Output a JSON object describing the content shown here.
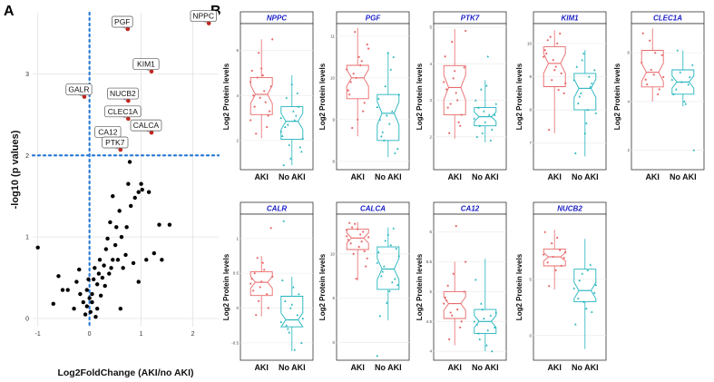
{
  "panels": {
    "a": "A",
    "b": "B"
  },
  "colors": {
    "aki": "#e8696a",
    "noaki": "#21b3bd",
    "volcano_point": "#000000",
    "highlight_point": "#c0261f",
    "threshold": "#2b7bd6",
    "title": "#1a1fc4"
  },
  "chart_data": [
    {
      "type": "scatter",
      "panel": "A",
      "xlabel": "Log2FoldChange (AKI/no AKI)",
      "ylabel": "-log10 (p values)",
      "xlim": [
        -1.1,
        2.5
      ],
      "ylim": [
        -0.1,
        3.75
      ],
      "xticks": [
        -1,
        0,
        1,
        2
      ],
      "yticks": [
        0,
        1,
        2,
        3
      ],
      "grid": true,
      "thresholds": {
        "x": 0,
        "y": 2
      },
      "labeled_points": [
        {
          "label": "NPPC",
          "x": 2.31,
          "y": 3.62
        },
        {
          "label": "PGF",
          "x": 0.74,
          "y": 3.55
        },
        {
          "label": "KIM1",
          "x": 1.2,
          "y": 3.03
        },
        {
          "label": "NUCB2",
          "x": 0.75,
          "y": 2.67
        },
        {
          "label": "GALR",
          "x": -0.1,
          "y": 2.72
        },
        {
          "label": "CLEC1A",
          "x": 0.75,
          "y": 2.45
        },
        {
          "label": "CALCA",
          "x": 1.2,
          "y": 2.28
        },
        {
          "label": "CA12",
          "x": 0.46,
          "y": 2.2
        },
        {
          "label": "PTK7",
          "x": 0.6,
          "y": 2.07
        }
      ],
      "points": [
        [
          -1.0,
          0.87
        ],
        [
          -0.7,
          0.18
        ],
        [
          -0.6,
          0.52
        ],
        [
          -0.52,
          0.35
        ],
        [
          -0.42,
          0.35
        ],
        [
          -0.3,
          0.12
        ],
        [
          -0.25,
          0.45
        ],
        [
          -0.2,
          0.6
        ],
        [
          -0.18,
          0.3
        ],
        [
          -0.12,
          0.2
        ],
        [
          -0.08,
          0.05
        ],
        [
          -0.05,
          0.35
        ],
        [
          -0.02,
          0.48
        ],
        [
          0.0,
          0.25
        ],
        [
          0.02,
          0.08
        ],
        [
          0.05,
          0.3
        ],
        [
          0.08,
          0.48
        ],
        [
          0.1,
          0.62
        ],
        [
          0.12,
          0.02
        ],
        [
          0.15,
          0.42
        ],
        [
          0.18,
          0.55
        ],
        [
          0.2,
          0.72
        ],
        [
          0.22,
          0.28
        ],
        [
          0.25,
          0.5
        ],
        [
          0.28,
          0.65
        ],
        [
          0.3,
          0.4
        ],
        [
          0.32,
          0.85
        ],
        [
          0.35,
          0.98
        ],
        [
          0.38,
          0.55
        ],
        [
          0.4,
          1.18
        ],
        [
          0.42,
          0.62
        ],
        [
          0.45,
          0.72
        ],
        [
          0.5,
          0.9
        ],
        [
          0.52,
          1.12
        ],
        [
          0.55,
          0.72
        ],
        [
          0.58,
          1.32
        ],
        [
          0.62,
          1.0
        ],
        [
          0.65,
          0.62
        ],
        [
          0.7,
          0.78
        ],
        [
          0.72,
          1.12
        ],
        [
          0.75,
          1.65
        ],
        [
          0.78,
          1.92
        ],
        [
          0.8,
          1.38
        ],
        [
          0.85,
          0.68
        ],
        [
          0.88,
          1.48
        ],
        [
          0.95,
          1.55
        ],
        [
          1.0,
          1.65
        ],
        [
          1.02,
          1.58
        ],
        [
          1.1,
          0.72
        ],
        [
          1.15,
          1.55
        ],
        [
          1.25,
          0.8
        ],
        [
          1.35,
          1.15
        ],
        [
          1.4,
          0.72
        ],
        [
          1.55,
          1.15
        ],
        [
          0.6,
          0.12
        ],
        [
          0.15,
          0.12
        ],
        [
          -0.05,
          0.15
        ],
        [
          0.05,
          0.2
        ],
        [
          0.45,
          1.5
        ],
        [
          0.95,
          0.45
        ]
      ]
    },
    {
      "type": "box",
      "panel": "B",
      "title": "NPPC",
      "ylabel": "Log2 Protein levels",
      "categories": [
        "AKI",
        "No AKI"
      ],
      "ylim": [
        0.7,
        7.2
      ],
      "yticks": [
        2,
        4,
        6
      ],
      "boxes": [
        {
          "q1": 3.15,
          "median": 4.05,
          "q3": 4.8,
          "whisker_low": 2.1,
          "whisker_high": 6.5
        },
        {
          "q1": 2.05,
          "median": 2.85,
          "q3": 3.5,
          "whisker_low": 0.9,
          "whisker_high": 4.9
        }
      ],
      "points": [
        [
          4.6,
          3.5,
          5.9,
          4.9,
          2.6,
          4.4,
          5.1,
          2.3,
          3.9,
          4.2,
          3.1,
          6.5,
          4.0,
          4.8,
          5.2,
          3.7,
          3.3,
          2.9
        ],
        [
          3.0,
          2.6,
          1.8,
          3.3,
          4.1,
          1.5,
          2.2,
          3.9,
          1.2,
          2.9,
          3.5,
          2.1,
          0.9,
          2.7,
          4.5,
          3.1,
          1.7,
          2.4
        ]
      ]
    },
    {
      "type": "box",
      "panel": "B",
      "title": "PGF",
      "ylabel": "Log2 Protein levels",
      "categories": [
        "AKI",
        "No AKI"
      ],
      "ylim": [
        7.8,
        11.3
      ],
      "yticks": [
        8,
        9,
        10,
        11
      ],
      "boxes": [
        {
          "q1": 9.5,
          "median": 10.0,
          "q3": 10.3,
          "whisker_low": 8.6,
          "whisker_high": 11.2
        },
        {
          "q1": 8.5,
          "median": 9.15,
          "q3": 9.6,
          "whisker_low": 8.1,
          "whisker_high": 10.6
        }
      ],
      "points": [
        [
          10.2,
          9.9,
          11.1,
          10.5,
          9.2,
          10.8,
          9.7,
          8.8,
          10.0,
          10.3,
          9.4,
          10.7,
          9.6,
          10.1,
          9.0,
          10.4
        ],
        [
          9.3,
          8.6,
          9.8,
          8.9,
          10.5,
          8.3,
          9.5,
          8.7,
          9.1,
          10.2,
          8.2,
          9.6,
          9.0,
          8.5,
          10.6,
          9.2
        ]
      ]
    },
    {
      "type": "box",
      "panel": "B",
      "title": "PTK7",
      "ylabel": "Log2 Protein levels",
      "categories": [
        "AKI",
        "No AKI"
      ],
      "ylim": [
        1.1,
        5.1
      ],
      "yticks": [
        2,
        3,
        4,
        5
      ],
      "boxes": [
        {
          "q1": 2.6,
          "median": 3.35,
          "q3": 3.95,
          "whisker_low": 1.95,
          "whisker_high": 4.95
        },
        {
          "q1": 2.3,
          "median": 2.55,
          "q3": 2.8,
          "whisker_low": 1.85,
          "whisker_high": 3.55
        }
      ],
      "points": [
        [
          3.5,
          2.8,
          4.6,
          3.2,
          2.3,
          3.9,
          4.2,
          2.1,
          3.6,
          3.0,
          2.6,
          4.9,
          3.3,
          2.9,
          3.8,
          2.4
        ],
        [
          2.5,
          2.8,
          2.1,
          3.4,
          1.9,
          2.6,
          3.0,
          2.3,
          2.7,
          4.2,
          2.2,
          2.9,
          2.0,
          3.3,
          2.4,
          2.6
        ]
      ]
    },
    {
      "type": "box",
      "panel": "B",
      "title": "KIM1",
      "ylabel": "Log2 Protein levels",
      "categories": [
        "AKI",
        "No AKI"
      ],
      "ylim": [
        6.2,
        10.6
      ],
      "yticks": [
        7,
        8,
        9,
        10
      ],
      "boxes": [
        {
          "q1": 8.7,
          "median": 9.4,
          "q3": 9.9,
          "whisker_low": 7.3,
          "whisker_high": 10.4
        },
        {
          "q1": 8.0,
          "median": 8.65,
          "q3": 9.1,
          "whisker_low": 6.6,
          "whisker_high": 9.8
        }
      ],
      "points": [
        [
          9.6,
          10.1,
          8.9,
          9.3,
          10.3,
          8.5,
          9.8,
          7.4,
          9.5,
          10.0,
          9.1,
          8.8,
          9.7,
          10.2,
          9.2,
          8.6
        ],
        [
          8.9,
          8.2,
          9.5,
          7.6,
          8.7,
          9.2,
          6.7,
          8.4,
          9.7,
          8.0,
          8.8,
          7.9,
          9.3,
          8.5,
          7.3,
          9.0
        ]
      ]
    },
    {
      "type": "box",
      "panel": "B",
      "title": "CLEC1A",
      "ylabel": "Log2 Protein levels",
      "categories": [
        "AKI",
        "No AKI"
      ],
      "ylim": [
        1.2,
        7.2
      ],
      "yticks": [
        2,
        4,
        6
      ],
      "boxes": [
        {
          "q1": 4.6,
          "median": 5.2,
          "q3": 6.1,
          "whisker_low": 4.0,
          "whisker_high": 7.0
        },
        {
          "q1": 4.3,
          "median": 4.8,
          "q3": 5.3,
          "whisker_low": 3.8,
          "whisker_high": 6.1
        }
      ],
      "points": [
        [
          5.6,
          4.9,
          6.5,
          5.1,
          4.3,
          5.9,
          6.8,
          4.7,
          5.3,
          6.0,
          4.5,
          5.0
        ],
        [
          4.9,
          4.5,
          5.2,
          4.0,
          4.7,
          5.5,
          4.3,
          6.1,
          4.8,
          3.9,
          5.0,
          2.0
        ]
      ]
    },
    {
      "type": "box",
      "panel": "B",
      "title": "CALR",
      "ylabel": "Log2 Protein levels",
      "categories": [
        "AKI",
        "No AKI"
      ],
      "ylim": [
        -0.75,
        1.35
      ],
      "yticks": [
        -0.5,
        0.0,
        0.5,
        1.0
      ],
      "boxes": [
        {
          "q1": 0.18,
          "median": 0.37,
          "q3": 0.52,
          "whisker_low": -0.12,
          "whisker_high": 0.75
        },
        {
          "q1": -0.27,
          "median": -0.17,
          "q3": 0.17,
          "whisker_low": -0.62,
          "whisker_high": 0.45
        }
      ],
      "points": [
        [
          0.35,
          0.5,
          0.1,
          0.65,
          0.2,
          1.15,
          0.42,
          -0.1,
          0.3,
          0.55,
          0.0,
          0.45,
          0.25,
          0.72,
          0.38
        ],
        [
          -0.2,
          0.1,
          -0.35,
          0.3,
          -0.1,
          -0.5,
          0.4,
          -0.25,
          0.0,
          -0.6,
          0.2,
          -0.15,
          1.25,
          -0.3,
          0.05
        ]
      ]
    },
    {
      "type": "box",
      "panel": "B",
      "title": "CALCA",
      "ylabel": "Log2 Protein levels",
      "categories": [
        "AKI",
        "No AKI"
      ],
      "ylim": [
        -2.0,
        14.5
      ],
      "yticks": [
        0,
        5,
        10
      ],
      "boxes": [
        {
          "q1": 10.5,
          "median": 11.8,
          "q3": 12.8,
          "whisker_low": 7.0,
          "whisker_high": 13.6
        },
        {
          "q1": 6.0,
          "median": 8.3,
          "q3": 10.8,
          "whisker_low": 2.5,
          "whisker_high": 13.0
        }
      ],
      "points": [
        [
          12.0,
          11.2,
          13.4,
          10.8,
          12.5,
          9.5,
          11.6,
          13.0,
          7.2,
          12.2,
          10.3,
          11.9,
          13.5,
          10.0,
          12.8,
          11.4,
          8.6,
          12.7
        ],
        [
          9.0,
          7.5,
          11.5,
          5.8,
          12.9,
          6.5,
          10.2,
          8.0,
          4.5,
          11.0,
          7.2,
          9.8,
          3.0,
          8.6,
          12.2,
          6.8,
          10.6,
          -1.5
        ]
      ]
    },
    {
      "type": "box",
      "panel": "B",
      "title": "CA12",
      "ylabel": "Log2 Protein levels",
      "categories": [
        "AKI",
        "No AKI"
      ],
      "ylim": [
        3.85,
        6.3
      ],
      "yticks": [
        4.0,
        4.5,
        5.0,
        5.5,
        6.0
      ],
      "boxes": [
        {
          "q1": 4.55,
          "median": 4.8,
          "q3": 5.0,
          "whisker_low": 4.1,
          "whisker_high": 5.5
        },
        {
          "q1": 4.3,
          "median": 4.5,
          "q3": 4.7,
          "whisker_low": 4.0,
          "whisker_high": 5.55
        }
      ],
      "points": [
        [
          4.8,
          5.1,
          4.6,
          6.1,
          4.4,
          5.0,
          4.9,
          4.2,
          5.3,
          4.7,
          4.5,
          5.5,
          4.85,
          4.65
        ],
        [
          4.5,
          4.3,
          4.7,
          4.1,
          4.6,
          4.4,
          5.2,
          4.2,
          4.55,
          4.35,
          4.0,
          4.65,
          4.45,
          4.8
        ]
      ]
    },
    {
      "type": "box",
      "panel": "B",
      "title": "NUCB2",
      "ylabel": "Log2 Protein levels",
      "categories": [
        "AKI",
        "No AKI"
      ],
      "ylim": [
        -2.2,
        10.8
      ],
      "yticks": [
        0,
        5
      ],
      "boxes": [
        {
          "q1": 6.2,
          "median": 7.0,
          "q3": 7.7,
          "whisker_low": 4.1,
          "whisker_high": 9.4
        },
        {
          "q1": 3.0,
          "median": 4.0,
          "q3": 5.9,
          "whisker_low": -1.2,
          "whisker_high": 8.6
        }
      ],
      "points": [
        [
          7.2,
          6.5,
          8.2,
          5.8,
          7.6,
          6.9,
          9.2,
          4.4,
          7.0,
          8.7,
          6.2,
          7.4
        ],
        [
          4.2,
          3.3,
          5.5,
          2.4,
          6.3,
          3.8,
          1.0,
          4.9,
          3.0,
          5.8,
          2.1,
          4.5
        ]
      ]
    }
  ]
}
